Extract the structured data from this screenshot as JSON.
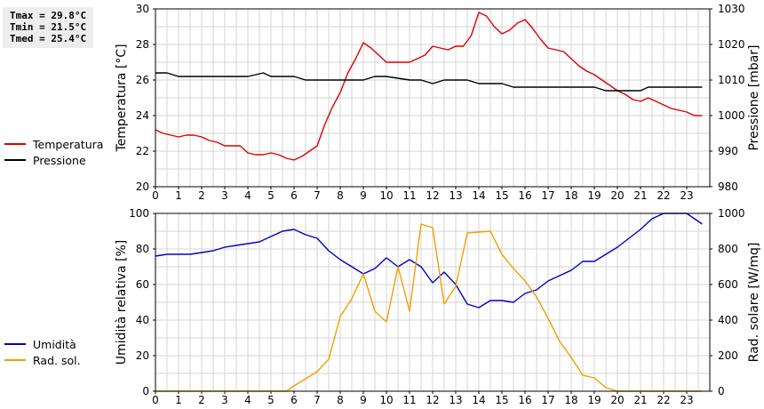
{
  "stats": {
    "tmax": "Tmax = 29.8°C",
    "tmin": "Tmin = 21.5°C",
    "tmed": "Tmed = 25.4°C"
  },
  "colors": {
    "temperatura": "#dd0000",
    "pressione": "#000000",
    "umidita": "#0000cc",
    "rad_sol": "#f0a000",
    "grid": "#d4d4d4"
  },
  "chart_data": [
    {
      "type": "line",
      "xlim": [
        0,
        24
      ],
      "x_ticks": [
        0,
        1,
        2,
        3,
        4,
        5,
        6,
        7,
        8,
        9,
        10,
        11,
        12,
        13,
        14,
        15,
        16,
        17,
        18,
        19,
        20,
        21,
        22,
        23
      ],
      "ylabel": "Temperatura [°C]",
      "ylim": [
        20,
        30
      ],
      "y_ticks": [
        20,
        22,
        24,
        26,
        28,
        30
      ],
      "y2label": "Pressione [mbar]",
      "y2lim": [
        980,
        1030
      ],
      "y2_ticks": [
        980,
        990,
        1000,
        1010,
        1020,
        1030
      ],
      "grid": true,
      "legend_position": "left",
      "series": [
        {
          "name": "Temperatura",
          "axis": "left",
          "color": "#dd0000",
          "points": [
            [
              0,
              23.2
            ],
            [
              0.33,
              23.0
            ],
            [
              0.67,
              22.9
            ],
            [
              1,
              22.8
            ],
            [
              1.33,
              22.9
            ],
            [
              1.67,
              22.9
            ],
            [
              2,
              22.8
            ],
            [
              2.33,
              22.6
            ],
            [
              2.67,
              22.5
            ],
            [
              3,
              22.3
            ],
            [
              3.33,
              22.3
            ],
            [
              3.67,
              22.3
            ],
            [
              4,
              21.9
            ],
            [
              4.33,
              21.8
            ],
            [
              4.67,
              21.8
            ],
            [
              5,
              21.9
            ],
            [
              5.33,
              21.8
            ],
            [
              5.67,
              21.6
            ],
            [
              6,
              21.5
            ],
            [
              6.33,
              21.7
            ],
            [
              6.67,
              22.0
            ],
            [
              7,
              22.3
            ],
            [
              7.33,
              23.5
            ],
            [
              7.67,
              24.5
            ],
            [
              8,
              25.3
            ],
            [
              8.33,
              26.4
            ],
            [
              8.67,
              27.2
            ],
            [
              9,
              28.1
            ],
            [
              9.33,
              27.8
            ],
            [
              9.67,
              27.4
            ],
            [
              10,
              27.0
            ],
            [
              10.33,
              27.0
            ],
            [
              10.67,
              27.0
            ],
            [
              11,
              27.0
            ],
            [
              11.33,
              27.2
            ],
            [
              11.67,
              27.4
            ],
            [
              12,
              27.9
            ],
            [
              12.33,
              27.8
            ],
            [
              12.67,
              27.7
            ],
            [
              13,
              27.9
            ],
            [
              13.33,
              27.9
            ],
            [
              13.67,
              28.5
            ],
            [
              14,
              29.8
            ],
            [
              14.33,
              29.6
            ],
            [
              14.67,
              29.0
            ],
            [
              15,
              28.6
            ],
            [
              15.33,
              28.8
            ],
            [
              15.67,
              29.2
            ],
            [
              16,
              29.4
            ],
            [
              16.33,
              28.9
            ],
            [
              16.67,
              28.3
            ],
            [
              17,
              27.8
            ],
            [
              17.33,
              27.7
            ],
            [
              17.67,
              27.6
            ],
            [
              18,
              27.2
            ],
            [
              18.33,
              26.8
            ],
            [
              18.67,
              26.5
            ],
            [
              19,
              26.3
            ],
            [
              19.33,
              26.0
            ],
            [
              19.67,
              25.7
            ],
            [
              20,
              25.4
            ],
            [
              20.33,
              25.2
            ],
            [
              20.67,
              24.9
            ],
            [
              21,
              24.8
            ],
            [
              21.33,
              25.0
            ],
            [
              21.67,
              24.8
            ],
            [
              22,
              24.6
            ],
            [
              22.33,
              24.4
            ],
            [
              22.67,
              24.3
            ],
            [
              23,
              24.2
            ],
            [
              23.33,
              24.0
            ],
            [
              23.67,
              24.0
            ]
          ]
        },
        {
          "name": "Pressione",
          "axis": "right",
          "color": "#000000",
          "points": [
            [
              0,
              1012
            ],
            [
              0.5,
              1012
            ],
            [
              1,
              1011
            ],
            [
              2,
              1011
            ],
            [
              3,
              1011
            ],
            [
              4,
              1011
            ],
            [
              4.67,
              1012
            ],
            [
              5,
              1011
            ],
            [
              6,
              1011
            ],
            [
              6.5,
              1010
            ],
            [
              7,
              1010
            ],
            [
              8,
              1010
            ],
            [
              9,
              1010
            ],
            [
              9.5,
              1011
            ],
            [
              10,
              1011
            ],
            [
              11,
              1010
            ],
            [
              11.5,
              1010
            ],
            [
              12,
              1009
            ],
            [
              12.5,
              1010
            ],
            [
              13,
              1010
            ],
            [
              13.5,
              1010
            ],
            [
              14,
              1009
            ],
            [
              14.5,
              1009
            ],
            [
              15,
              1009
            ],
            [
              15.5,
              1008
            ],
            [
              16,
              1008
            ],
            [
              17,
              1008
            ],
            [
              18,
              1008
            ],
            [
              19,
              1008
            ],
            [
              19.5,
              1007
            ],
            [
              20,
              1007
            ],
            [
              21,
              1007
            ],
            [
              21.33,
              1008
            ],
            [
              22,
              1008
            ],
            [
              23,
              1008
            ],
            [
              23.67,
              1008
            ]
          ]
        }
      ]
    },
    {
      "type": "line",
      "xlim": [
        0,
        24
      ],
      "x_ticks": [
        0,
        1,
        2,
        3,
        4,
        5,
        6,
        7,
        8,
        9,
        10,
        11,
        12,
        13,
        14,
        15,
        16,
        17,
        18,
        19,
        20,
        21,
        22,
        23
      ],
      "ylabel": "Umidità relativa [%]",
      "ylim": [
        0,
        100
      ],
      "y_ticks": [
        0,
        20,
        40,
        60,
        80,
        100
      ],
      "y2label": "Rad. solare [W/mq]",
      "y2lim": [
        0,
        1000
      ],
      "y2_ticks": [
        0,
        200,
        400,
        600,
        800,
        1000
      ],
      "grid": true,
      "legend_position": "left",
      "series": [
        {
          "name": "Umidità",
          "axis": "left",
          "color": "#0000cc",
          "points": [
            [
              0,
              76
            ],
            [
              0.5,
              77
            ],
            [
              1,
              77
            ],
            [
              1.5,
              77
            ],
            [
              2,
              78
            ],
            [
              2.5,
              79
            ],
            [
              3,
              81
            ],
            [
              3.5,
              82
            ],
            [
              4,
              83
            ],
            [
              4.5,
              84
            ],
            [
              5,
              87
            ],
            [
              5.5,
              90
            ],
            [
              6,
              91
            ],
            [
              6.5,
              88
            ],
            [
              7,
              86
            ],
            [
              7.5,
              79
            ],
            [
              8,
              74
            ],
            [
              8.5,
              70
            ],
            [
              9,
              66
            ],
            [
              9.5,
              69
            ],
            [
              10,
              75
            ],
            [
              10.5,
              70
            ],
            [
              11,
              74
            ],
            [
              11.5,
              70
            ],
            [
              12,
              61
            ],
            [
              12.5,
              67
            ],
            [
              13,
              60
            ],
            [
              13.5,
              49
            ],
            [
              14,
              47
            ],
            [
              14.5,
              51
            ],
            [
              15,
              51
            ],
            [
              15.5,
              50
            ],
            [
              16,
              55
            ],
            [
              16.5,
              57
            ],
            [
              17,
              62
            ],
            [
              17.5,
              65
            ],
            [
              18,
              68
            ],
            [
              18.5,
              73
            ],
            [
              19,
              73
            ],
            [
              19.5,
              77
            ],
            [
              20,
              81
            ],
            [
              20.5,
              86
            ],
            [
              21,
              91
            ],
            [
              21.5,
              97
            ],
            [
              22,
              100
            ],
            [
              22.5,
              100
            ],
            [
              23,
              100
            ],
            [
              23.67,
              94
            ]
          ]
        },
        {
          "name": "Rad. sol.",
          "axis": "right",
          "color": "#f0a000",
          "points": [
            [
              0,
              0
            ],
            [
              1,
              0
            ],
            [
              2,
              0
            ],
            [
              3,
              0
            ],
            [
              4,
              0
            ],
            [
              5,
              0
            ],
            [
              5.67,
              0
            ],
            [
              6,
              30
            ],
            [
              6.5,
              70
            ],
            [
              7,
              110
            ],
            [
              7.5,
              180
            ],
            [
              8,
              420
            ],
            [
              8.5,
              520
            ],
            [
              9,
              660
            ],
            [
              9.5,
              450
            ],
            [
              10,
              390
            ],
            [
              10.5,
              700
            ],
            [
              11,
              450
            ],
            [
              11.5,
              940
            ],
            [
              12,
              920
            ],
            [
              12.5,
              490
            ],
            [
              13,
              590
            ],
            [
              13.5,
              890
            ],
            [
              14,
              895
            ],
            [
              14.5,
              900
            ],
            [
              15,
              770
            ],
            [
              15.5,
              690
            ],
            [
              16,
              620
            ],
            [
              16.5,
              530
            ],
            [
              17,
              410
            ],
            [
              17.5,
              280
            ],
            [
              18,
              190
            ],
            [
              18.5,
              90
            ],
            [
              19,
              75
            ],
            [
              19.5,
              20
            ],
            [
              20,
              0
            ],
            [
              21,
              0
            ],
            [
              22,
              0
            ],
            [
              23,
              0
            ],
            [
              23.67,
              0
            ]
          ]
        }
      ]
    }
  ]
}
